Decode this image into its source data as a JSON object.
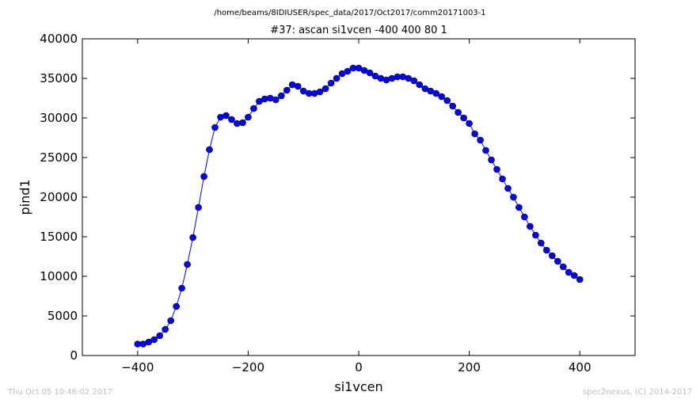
{
  "header": {
    "path": "/home/beams/8IDIUSER/spec_data/2017/Oct2017/comm20171003-1"
  },
  "footer": {
    "timestamp": "Thu Oct 05 10:46:02 2017",
    "credit": "spec2nexus, (C) 2014-2017"
  },
  "chart_data": {
    "type": "line",
    "title": "#37: ascan  si1vcen -400 400  80 1",
    "xlabel": "si1vcen",
    "ylabel": "pind1",
    "xlim": [
      -500,
      500
    ],
    "ylim": [
      0,
      40000
    ],
    "xticks": [
      -400,
      -200,
      0,
      200,
      400
    ],
    "xtick_labels": [
      "−400",
      "−200",
      "0",
      "200",
      "400"
    ],
    "yticks": [
      0,
      5000,
      10000,
      15000,
      20000,
      25000,
      30000,
      35000,
      40000
    ],
    "ytick_labels": [
      "0",
      "5000",
      "10000",
      "15000",
      "20000",
      "25000",
      "30000",
      "35000",
      "40000"
    ],
    "grid": false,
    "series": [
      {
        "color": "#0000ff",
        "marker": "circle",
        "x": [
          -400,
          -390,
          -380,
          -370,
          -360,
          -350,
          -340,
          -330,
          -320,
          -310,
          -300,
          -290,
          -280,
          -270,
          -260,
          -250,
          -240,
          -230,
          -220,
          -210,
          -200,
          -190,
          -180,
          -170,
          -160,
          -150,
          -140,
          -130,
          -120,
          -110,
          -100,
          -90,
          -80,
          -70,
          -60,
          -50,
          -40,
          -30,
          -20,
          -10,
          0,
          10,
          20,
          30,
          40,
          50,
          60,
          70,
          80,
          90,
          100,
          110,
          120,
          130,
          140,
          150,
          160,
          170,
          180,
          190,
          200,
          210,
          220,
          230,
          240,
          250,
          260,
          270,
          280,
          290,
          300,
          310,
          320,
          330,
          340,
          350,
          360,
          370,
          380,
          390,
          400
        ],
        "y": [
          1450,
          1450,
          1700,
          2000,
          2500,
          3300,
          4400,
          6200,
          8500,
          11500,
          14900,
          18700,
          22600,
          26000,
          28800,
          30100,
          30300,
          29800,
          29300,
          29400,
          30100,
          31200,
          32100,
          32400,
          32500,
          32300,
          32800,
          33500,
          34200,
          34000,
          33400,
          33100,
          33100,
          33300,
          33700,
          34400,
          35000,
          35600,
          35900,
          36300,
          36300,
          36000,
          35700,
          35300,
          35000,
          34800,
          35000,
          35200,
          35200,
          35000,
          34700,
          34200,
          33700,
          33400,
          33100,
          32700,
          32200,
          31500,
          30700,
          30000,
          29300,
          28000,
          27200,
          25900,
          24700,
          23500,
          22300,
          21100,
          20000,
          18700,
          17500,
          16300,
          15200,
          14200,
          13300,
          12600,
          11900,
          11200,
          10500,
          10100,
          9600
        ]
      }
    ]
  }
}
